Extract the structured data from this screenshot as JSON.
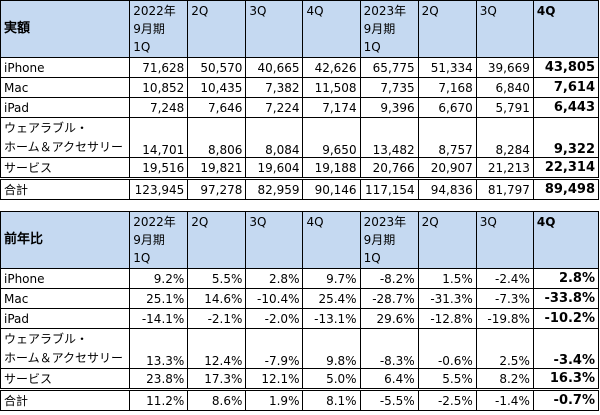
{
  "revenue": {
    "title": "実額",
    "headers": [
      "2022年\n9月期\n1Q",
      "2Q",
      "3Q",
      "4Q",
      "2023年\n9月期\n1Q",
      "2Q",
      "3Q",
      "4Q"
    ],
    "rows": [
      {
        "label": "iPhone",
        "values": [
          "71,628",
          "50,570",
          "40,665",
          "42,626",
          "65,775",
          "51,334",
          "39,669",
          "43,805"
        ]
      },
      {
        "label": "Mac",
        "values": [
          "10,852",
          "10,435",
          "7,382",
          "11,508",
          "7,735",
          "7,168",
          "6,840",
          "7,614"
        ]
      },
      {
        "label": "iPad",
        "values": [
          "7,248",
          "7,646",
          "7,224",
          "7,174",
          "9,396",
          "6,670",
          "5,791",
          "6,443"
        ]
      },
      {
        "label": "ウェアラブル・\nホーム＆アクセサリー",
        "values": [
          "14,701",
          "8,806",
          "8,084",
          "9,650",
          "13,482",
          "8,757",
          "8,284",
          "9,322"
        ]
      },
      {
        "label": "サービス",
        "values": [
          "19,516",
          "19,821",
          "19,604",
          "19,188",
          "20,766",
          "20,907",
          "21,213",
          "22,314"
        ]
      },
      {
        "label": "合計",
        "values": [
          "123,945",
          "97,278",
          "82,959",
          "90,146",
          "117,154",
          "94,836",
          "81,797",
          "89,498"
        ]
      }
    ]
  },
  "yoy": {
    "title": "前年比",
    "headers": [
      "2022年\n9月期\n1Q",
      "2Q",
      "3Q",
      "4Q",
      "2023年\n9月期\n1Q",
      "2Q",
      "3Q",
      "4Q"
    ],
    "rows": [
      {
        "label": "iPhone",
        "values": [
          "9.2%",
          "5.5%",
          "2.8%",
          "9.7%",
          "-8.2%",
          "1.5%",
          "-2.4%",
          "2.8%"
        ]
      },
      {
        "label": "Mac",
        "values": [
          "25.1%",
          "14.6%",
          "-10.4%",
          "25.4%",
          "-28.7%",
          "-31.3%",
          "-7.3%",
          "-33.8%"
        ]
      },
      {
        "label": "iPad",
        "values": [
          "-14.1%",
          "-2.1%",
          "-2.0%",
          "-13.1%",
          "29.6%",
          "-12.8%",
          "-19.8%",
          "-10.2%"
        ]
      },
      {
        "label": "ウェアラブル・\nホーム＆アクセサリー",
        "values": [
          "13.3%",
          "12.4%",
          "-7.9%",
          "9.8%",
          "-8.3%",
          "-0.6%",
          "2.5%",
          "-3.4%"
        ]
      },
      {
        "label": "サービス",
        "values": [
          "23.8%",
          "17.3%",
          "12.1%",
          "5.0%",
          "6.4%",
          "5.5%",
          "8.2%",
          "16.3%"
        ]
      },
      {
        "label": "合計",
        "values": [
          "11.2%",
          "8.6%",
          "1.9%",
          "8.1%",
          "-5.5%",
          "-2.5%",
          "-1.4%",
          "-0.7%"
        ]
      }
    ]
  }
}
